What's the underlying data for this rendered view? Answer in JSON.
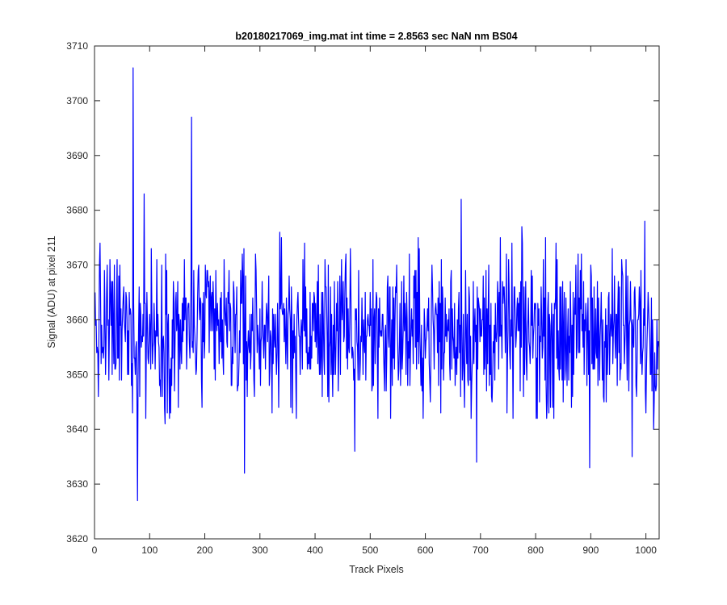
{
  "chart_data": {
    "type": "line",
    "title": "b20180217069_img.mat int time = 2.8563 sec  NaN nm BS04",
    "xlabel": "Track Pixels",
    "ylabel": "Signal (ADU) at pixel 211",
    "xlim": [
      0,
      1024
    ],
    "ylim": [
      3620,
      3710
    ],
    "xticks": [
      0,
      100,
      200,
      300,
      400,
      500,
      600,
      700,
      800,
      900,
      1000
    ],
    "yticks": [
      3620,
      3630,
      3640,
      3650,
      3660,
      3670,
      3680,
      3690,
      3700,
      3710
    ],
    "xtick_labels": [
      "0",
      "100",
      "200",
      "300",
      "400",
      "500",
      "600",
      "700",
      "800",
      "900",
      "1000"
    ],
    "ytick_labels": [
      "3620",
      "3630",
      "3640",
      "3650",
      "3660",
      "3670",
      "3680",
      "3690",
      "3700",
      "3710"
    ],
    "grid": false,
    "series": [
      {
        "color": "#0000ff",
        "n_points": 1024,
        "baseline": 3658,
        "noise_amplitude": 10,
        "notable_points": [
          {
            "x": 70,
            "y": 3706
          },
          {
            "x": 78,
            "y": 3627
          },
          {
            "x": 90,
            "y": 3683
          },
          {
            "x": 176,
            "y": 3697
          },
          {
            "x": 272,
            "y": 3632
          },
          {
            "x": 472,
            "y": 3636
          },
          {
            "x": 665,
            "y": 3682
          },
          {
            "x": 693,
            "y": 3634
          },
          {
            "x": 898,
            "y": 3633
          },
          {
            "x": 975,
            "y": 3635
          },
          {
            "x": 998,
            "y": 3678
          }
        ]
      }
    ]
  }
}
